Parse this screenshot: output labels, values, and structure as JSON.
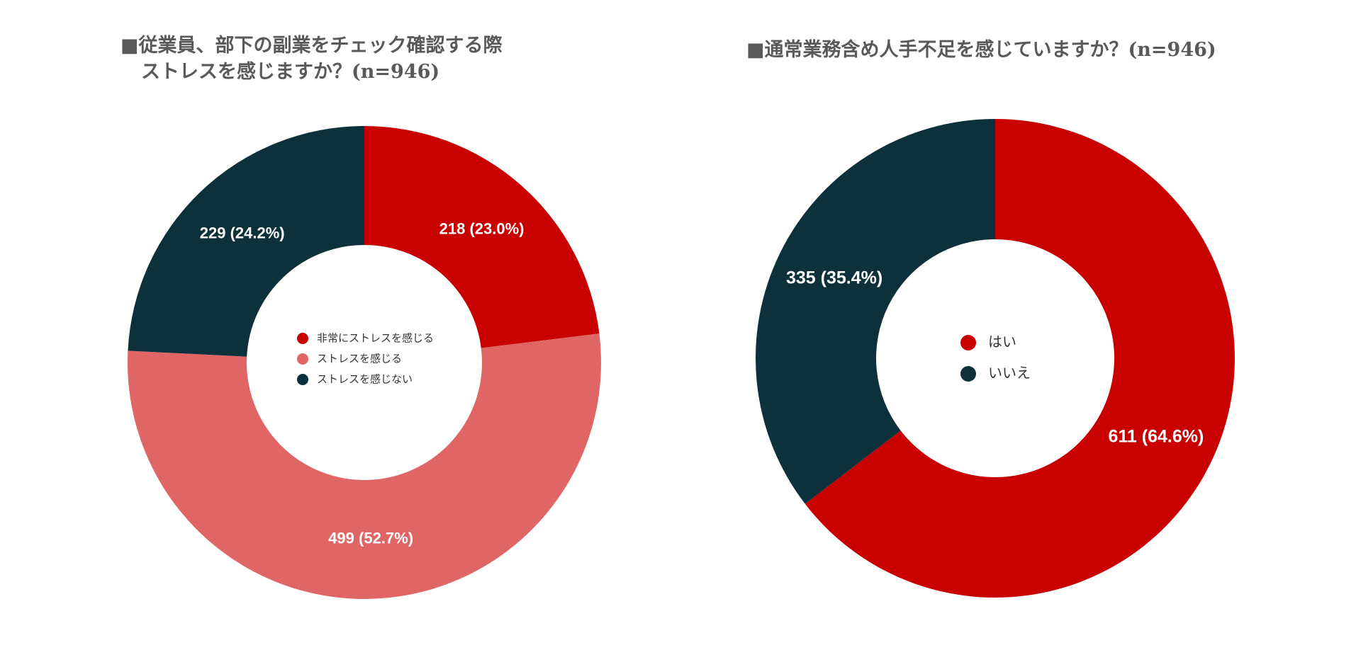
{
  "chart_data": [
    {
      "type": "pie",
      "title_lines": [
        "■従業員、部下の副業をチェック確認する際",
        "ストレスを感じますか？(n=946)"
      ],
      "categories": [
        "非常にストレスを感じる",
        "ストレスを感じる",
        "ストレスを感じない"
      ],
      "values": [
        218,
        499,
        229
      ],
      "labels": [
        "218 (23.0%)",
        "499 (52.7%)",
        "229 (24.2%)"
      ],
      "colors": [
        "#c80000",
        "#e06666",
        "#0d313b"
      ],
      "legend_position": "center"
    },
    {
      "type": "pie",
      "title_lines": [
        "■通常業務含め人手不足を感じていますか？(n=946)"
      ],
      "categories": [
        "はい",
        "いいえ"
      ],
      "values": [
        611,
        335
      ],
      "labels": [
        "611 (64.6%)",
        "335 (35.4%)"
      ],
      "colors": [
        "#c80000",
        "#0d313b"
      ],
      "legend_position": "center"
    }
  ]
}
